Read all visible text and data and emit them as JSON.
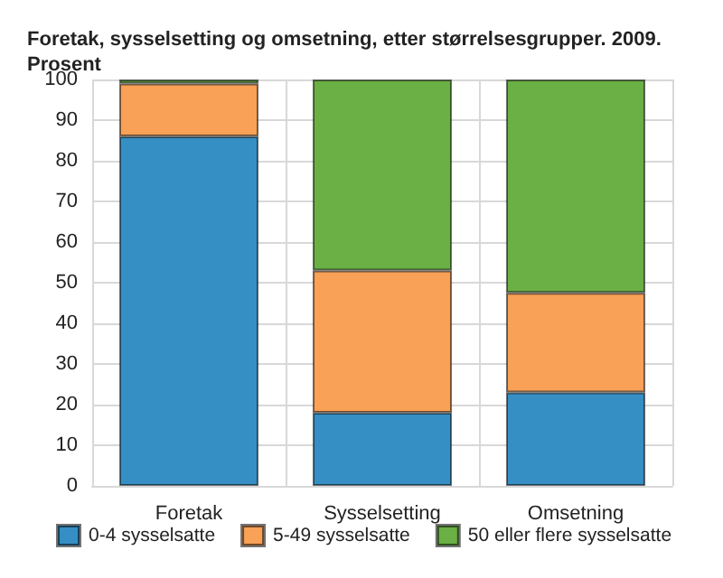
{
  "chart_data": {
    "type": "bar",
    "title": "Foretak, sysselsetting og omsetning, etter størrelsesgrupper. 2009.\nProsent",
    "categories": [
      "Foretak",
      "Sysselsetting",
      "Omsetning"
    ],
    "stacked": true,
    "series": [
      {
        "name": "0-4 sysselsatte",
        "color": "#358fc4",
        "values": [
          86,
          18,
          23
        ]
      },
      {
        "name": "5-49 sysselsatte",
        "color": "#f8a157",
        "values": [
          13,
          35,
          24.5
        ]
      },
      {
        "name": "50 eller flere sysselsatte",
        "color": "#6ab045",
        "values": [
          1,
          47,
          52.5
        ]
      }
    ],
    "ylim": [
      0,
      100
    ],
    "yticks": [
      0,
      10,
      20,
      30,
      40,
      50,
      60,
      70,
      80,
      90,
      100
    ],
    "grid": true,
    "legend": "bottom"
  }
}
